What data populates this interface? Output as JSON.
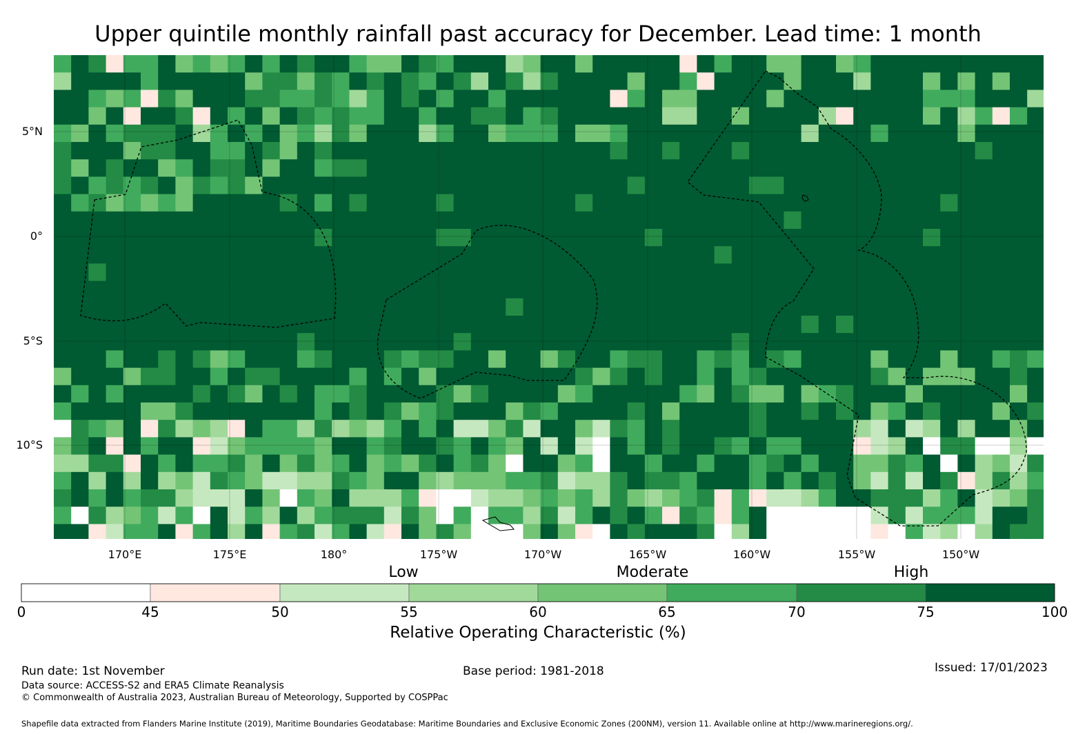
{
  "title": "Upper quintile monthly rainfall past accuracy for December. Lead time: 1 month",
  "map": {
    "lat_labels": [
      "5°N",
      "0°",
      "5°S",
      "10°S"
    ],
    "lon_labels": [
      "170°E",
      "175°E",
      "180°",
      "175°W",
      "170°W",
      "165°W",
      "160°W",
      "155°W",
      "150°W"
    ],
    "extent": {
      "lon_min": 166.6,
      "lon_max": 213.9,
      "lat_min": -14.6,
      "lat_max": 8.6
    },
    "grid_step_deg": 0.8
  },
  "colorbar": {
    "categories": [
      "Low",
      "Moderate",
      "High"
    ],
    "ticks": [
      "0",
      "45",
      "50",
      "55",
      "60",
      "65",
      "70",
      "75",
      "100"
    ],
    "colors": [
      "#ffffff",
      "#fee8e0",
      "#c6e8c0",
      "#a1d99b",
      "#74c476",
      "#41ab5d",
      "#238b45",
      "#005a32"
    ],
    "label": "Relative Operating Characteristic (%)"
  },
  "footer": {
    "run_date": "Run date: 1st November",
    "base_period": "Base period: 1981-2018",
    "issued": "Issued: 17/01/2023",
    "data_source": "Data source: ACCESS-S2 and ERA5 Climate Reanalysis",
    "copyright": "© Commonwealth of Australia 2023, Australian Bureau of Meteorology, Supported by COSPPac",
    "shapefile": "Shapefile data extracted from Flanders Marine Institute (2019), Maritime Boundaries Geodatabase: Maritime Boundaries and Exclusive Economic Zones (200NM), version 11. Available online at http://www.marineregions.org/."
  }
}
